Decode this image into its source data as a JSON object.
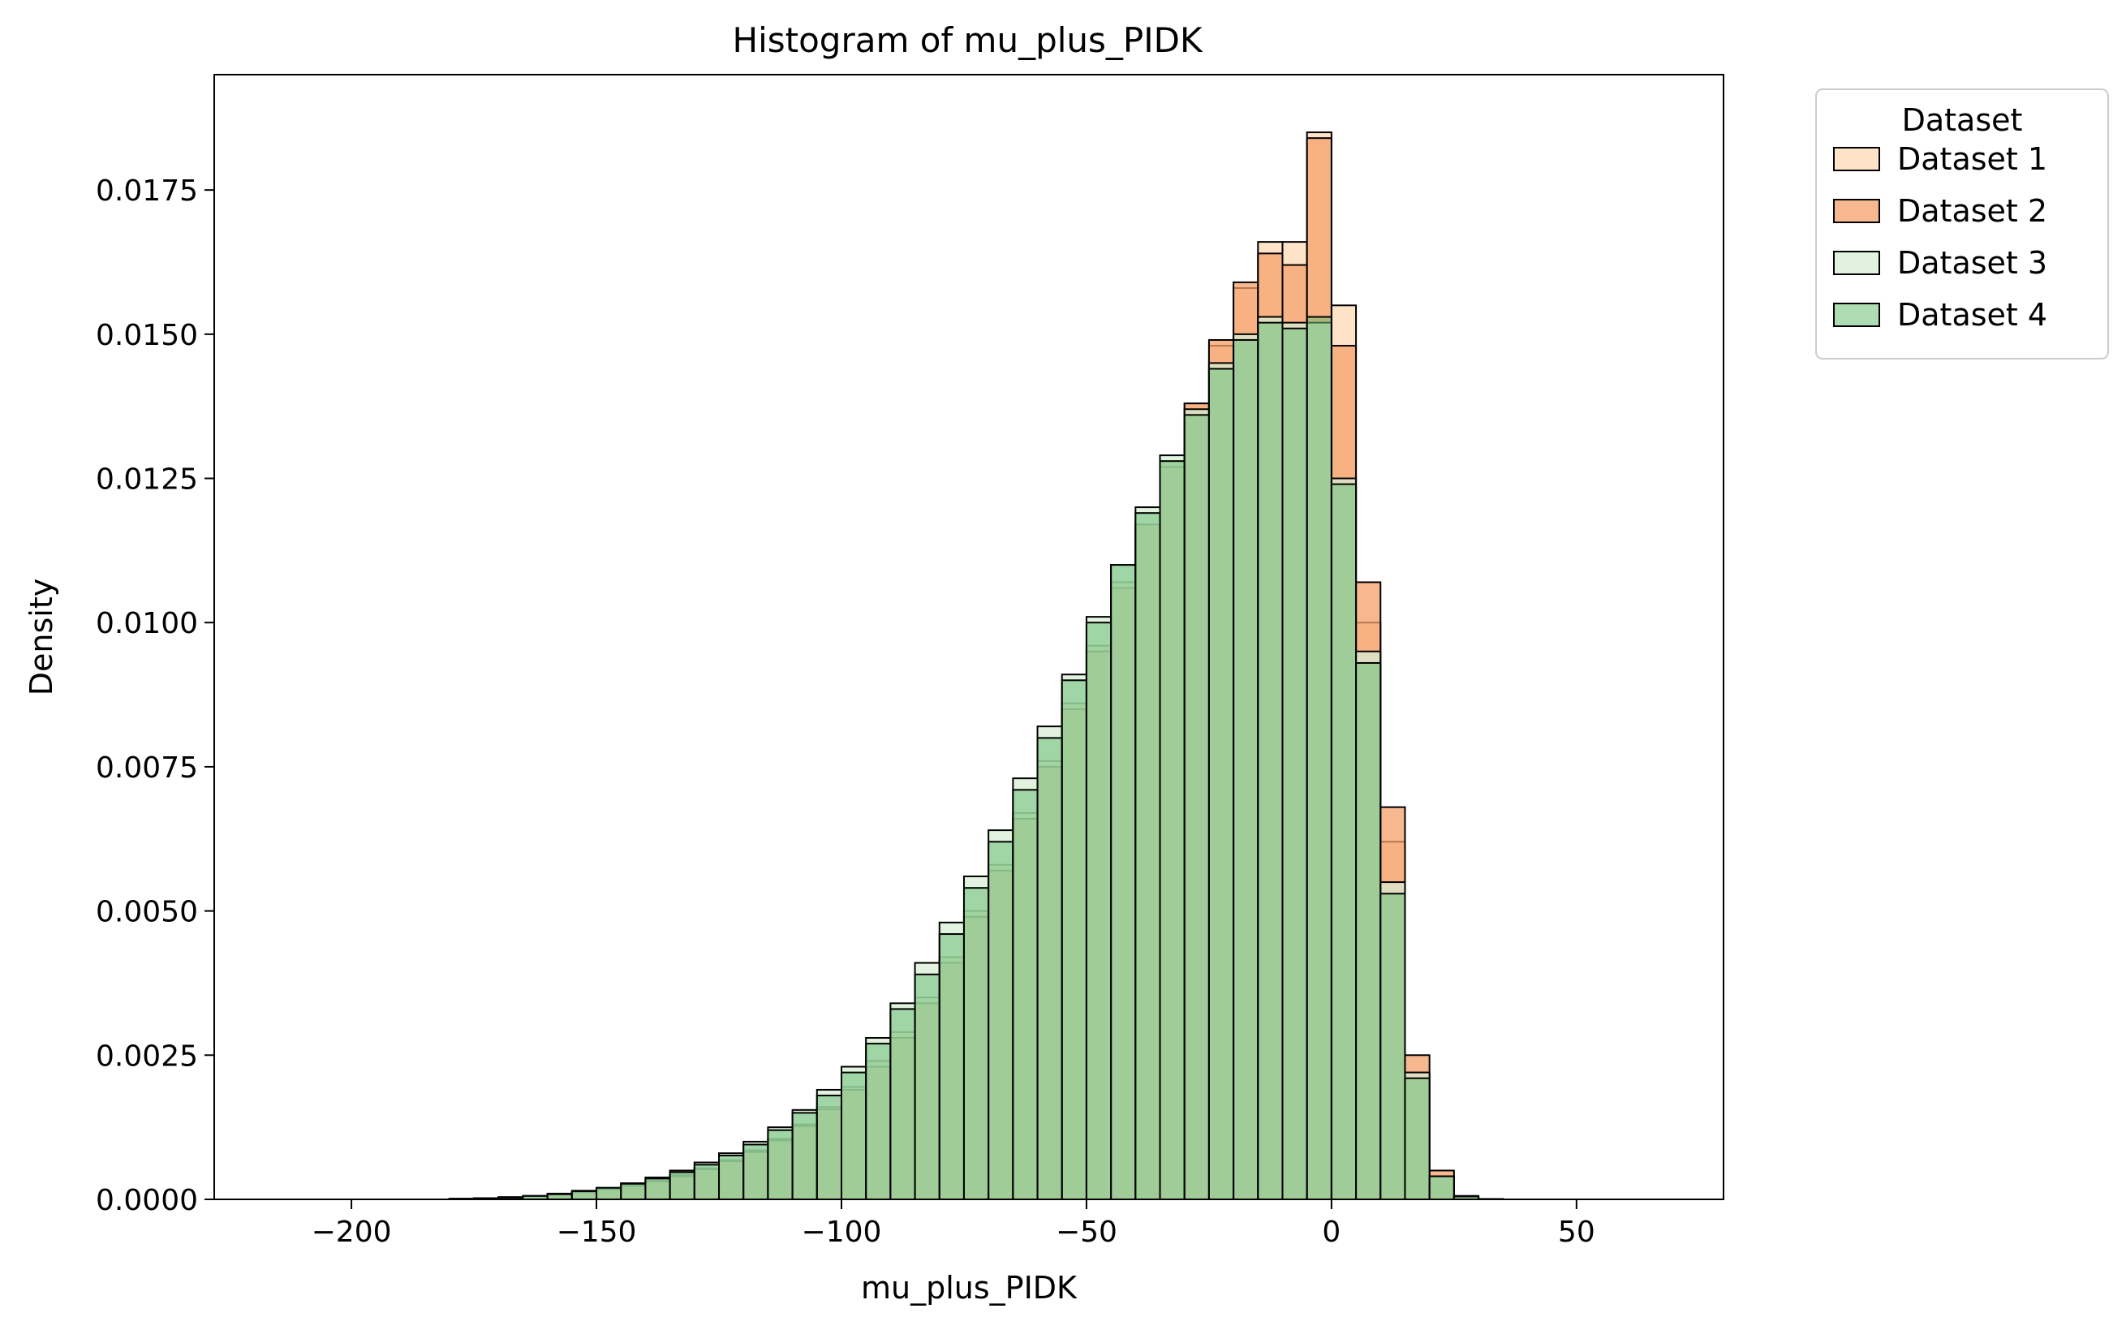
{
  "chart_data": {
    "type": "histogram",
    "title": "Histogram of mu_plus_PIDK",
    "xlabel": "mu_plus_PIDK",
    "ylabel": "Density",
    "xlim": [
      -228,
      80
    ],
    "ylim": [
      0,
      0.0195
    ],
    "xticks": [
      -200,
      -150,
      -100,
      -50,
      0,
      50
    ],
    "xtick_labels": [
      "−200",
      "−150",
      "−100",
      "−50",
      "0",
      "50"
    ],
    "yticks": [
      0,
      0.0025,
      0.005,
      0.0075,
      0.01,
      0.0125,
      0.015,
      0.0175
    ],
    "ytick_labels": [
      "0.0000",
      "0.0025",
      "0.0050",
      "0.0075",
      "0.0100",
      "0.0125",
      "0.0150",
      "0.0175"
    ],
    "legend": {
      "title": "Dataset",
      "placement": "outside-upper-right"
    },
    "series": [
      {
        "name": "Dataset 1",
        "color": "#fdd9b5",
        "opacity": 0.75,
        "bins": [
          [
            -180,
            -175,
            1e-05
          ],
          [
            -175,
            -170,
            2e-05
          ],
          [
            -170,
            -165,
            3e-05
          ],
          [
            -165,
            -160,
            5e-05
          ],
          [
            -160,
            -155,
            8e-05
          ],
          [
            -155,
            -150,
            0.00012
          ],
          [
            -150,
            -145,
            0.00017
          ],
          [
            -145,
            -140,
            0.00024
          ],
          [
            -140,
            -135,
            0.00032
          ],
          [
            -135,
            -130,
            0.00042
          ],
          [
            -130,
            -125,
            0.00054
          ],
          [
            -125,
            -120,
            0.00068
          ],
          [
            -120,
            -115,
            0.00085
          ],
          [
            -115,
            -110,
            0.00105
          ],
          [
            -110,
            -105,
            0.0013
          ],
          [
            -105,
            -100,
            0.0016
          ],
          [
            -100,
            -95,
            0.00195
          ],
          [
            -95,
            -90,
            0.0024
          ],
          [
            -90,
            -85,
            0.0029
          ],
          [
            -85,
            -80,
            0.0035
          ],
          [
            -80,
            -75,
            0.0042
          ],
          [
            -75,
            -70,
            0.005
          ],
          [
            -70,
            -65,
            0.0058
          ],
          [
            -65,
            -60,
            0.0067
          ],
          [
            -60,
            -55,
            0.0076
          ],
          [
            -55,
            -50,
            0.0086
          ],
          [
            -50,
            -45,
            0.0096
          ],
          [
            -45,
            -40,
            0.0107
          ],
          [
            -40,
            -35,
            0.0117
          ],
          [
            -35,
            -30,
            0.0128
          ],
          [
            -30,
            -25,
            0.0138
          ],
          [
            -25,
            -20,
            0.0148
          ],
          [
            -20,
            -15,
            0.0158
          ],
          [
            -15,
            -10,
            0.0166
          ],
          [
            -10,
            -5,
            0.0166
          ],
          [
            -5,
            0,
            0.0185
          ],
          [
            0,
            5,
            0.0155
          ],
          [
            5,
            10,
            0.01
          ],
          [
            10,
            15,
            0.0062
          ],
          [
            15,
            20,
            0.0022
          ],
          [
            20,
            25,
            0.0004
          ],
          [
            25,
            30,
            5e-05
          ],
          [
            30,
            35,
            5e-06
          ]
        ]
      },
      {
        "name": "Dataset 2",
        "color": "#f4a06b",
        "opacity": 0.75,
        "bins": [
          [
            -180,
            -175,
            1e-05
          ],
          [
            -175,
            -170,
            2e-05
          ],
          [
            -170,
            -165,
            3e-05
          ],
          [
            -165,
            -160,
            5e-05
          ],
          [
            -160,
            -155,
            8e-05
          ],
          [
            -155,
            -150,
            0.00012
          ],
          [
            -150,
            -145,
            0.00017
          ],
          [
            -145,
            -140,
            0.00023
          ],
          [
            -140,
            -135,
            0.00031
          ],
          [
            -135,
            -130,
            0.0004
          ],
          [
            -130,
            -125,
            0.00052
          ],
          [
            -125,
            -120,
            0.00066
          ],
          [
            -120,
            -115,
            0.00082
          ],
          [
            -115,
            -110,
            0.00102
          ],
          [
            -110,
            -105,
            0.00127
          ],
          [
            -105,
            -100,
            0.00156
          ],
          [
            -100,
            -95,
            0.0019
          ],
          [
            -95,
            -90,
            0.0023
          ],
          [
            -90,
            -85,
            0.0028
          ],
          [
            -85,
            -80,
            0.0034
          ],
          [
            -80,
            -75,
            0.0041
          ],
          [
            -75,
            -70,
            0.0049
          ],
          [
            -70,
            -65,
            0.0057
          ],
          [
            -65,
            -60,
            0.0066
          ],
          [
            -60,
            -55,
            0.0075
          ],
          [
            -55,
            -50,
            0.0085
          ],
          [
            -50,
            -45,
            0.0095
          ],
          [
            -45,
            -40,
            0.0106
          ],
          [
            -40,
            -35,
            0.0117
          ],
          [
            -35,
            -30,
            0.0127
          ],
          [
            -30,
            -25,
            0.0138
          ],
          [
            -25,
            -20,
            0.0149
          ],
          [
            -20,
            -15,
            0.0159
          ],
          [
            -15,
            -10,
            0.0164
          ],
          [
            -10,
            -5,
            0.0162
          ],
          [
            -5,
            0,
            0.0184
          ],
          [
            0,
            5,
            0.0148
          ],
          [
            5,
            10,
            0.0107
          ],
          [
            10,
            15,
            0.0068
          ],
          [
            15,
            20,
            0.0025
          ],
          [
            20,
            25,
            0.0005
          ],
          [
            25,
            30,
            6e-05
          ],
          [
            30,
            35,
            5e-06
          ]
        ]
      },
      {
        "name": "Dataset 3",
        "color": "#d7eed4",
        "opacity": 0.75,
        "bins": [
          [
            -180,
            -175,
            1e-05
          ],
          [
            -175,
            -170,
            2e-05
          ],
          [
            -170,
            -165,
            4e-05
          ],
          [
            -165,
            -160,
            6e-05
          ],
          [
            -160,
            -155,
            0.0001
          ],
          [
            -155,
            -150,
            0.00015
          ],
          [
            -150,
            -145,
            0.0002
          ],
          [
            -145,
            -140,
            0.00028
          ],
          [
            -140,
            -135,
            0.00038
          ],
          [
            -135,
            -130,
            0.0005
          ],
          [
            -130,
            -125,
            0.00064
          ],
          [
            -125,
            -120,
            0.0008
          ],
          [
            -120,
            -115,
            0.001
          ],
          [
            -115,
            -110,
            0.00125
          ],
          [
            -110,
            -105,
            0.00155
          ],
          [
            -105,
            -100,
            0.0019
          ],
          [
            -100,
            -95,
            0.0023
          ],
          [
            -95,
            -90,
            0.0028
          ],
          [
            -90,
            -85,
            0.0034
          ],
          [
            -85,
            -80,
            0.0041
          ],
          [
            -80,
            -75,
            0.0048
          ],
          [
            -75,
            -70,
            0.0056
          ],
          [
            -70,
            -65,
            0.0064
          ],
          [
            -65,
            -60,
            0.0073
          ],
          [
            -60,
            -55,
            0.0082
          ],
          [
            -55,
            -50,
            0.0091
          ],
          [
            -50,
            -45,
            0.0101
          ],
          [
            -45,
            -40,
            0.011
          ],
          [
            -40,
            -35,
            0.012
          ],
          [
            -35,
            -30,
            0.0129
          ],
          [
            -30,
            -25,
            0.0137
          ],
          [
            -25,
            -20,
            0.0145
          ],
          [
            -20,
            -15,
            0.015
          ],
          [
            -15,
            -10,
            0.0153
          ],
          [
            -10,
            -5,
            0.0152
          ],
          [
            -5,
            0,
            0.0152
          ],
          [
            0,
            5,
            0.0125
          ],
          [
            5,
            10,
            0.0095
          ],
          [
            10,
            15,
            0.0055
          ],
          [
            15,
            20,
            0.0022
          ],
          [
            20,
            25,
            0.0004
          ],
          [
            25,
            30,
            5e-05
          ],
          [
            30,
            35,
            5e-06
          ]
        ]
      },
      {
        "name": "Dataset 4",
        "color": "#6bbf74",
        "opacity": 0.55,
        "bins": [
          [
            -180,
            -175,
            1e-05
          ],
          [
            -175,
            -170,
            2e-05
          ],
          [
            -170,
            -165,
            3e-05
          ],
          [
            -165,
            -160,
            6e-05
          ],
          [
            -160,
            -155,
            9e-05
          ],
          [
            -155,
            -150,
            0.00014
          ],
          [
            -150,
            -145,
            0.0002
          ],
          [
            -145,
            -140,
            0.00027
          ],
          [
            -140,
            -135,
            0.00036
          ],
          [
            -135,
            -130,
            0.00047
          ],
          [
            -130,
            -125,
            0.0006
          ],
          [
            -125,
            -120,
            0.00076
          ],
          [
            -120,
            -115,
            0.00095
          ],
          [
            -115,
            -110,
            0.0012
          ],
          [
            -110,
            -105,
            0.0015
          ],
          [
            -105,
            -100,
            0.0018
          ],
          [
            -100,
            -95,
            0.0022
          ],
          [
            -95,
            -90,
            0.0027
          ],
          [
            -90,
            -85,
            0.0033
          ],
          [
            -85,
            -80,
            0.0039
          ],
          [
            -80,
            -75,
            0.0046
          ],
          [
            -75,
            -70,
            0.0054
          ],
          [
            -70,
            -65,
            0.0062
          ],
          [
            -65,
            -60,
            0.0071
          ],
          [
            -60,
            -55,
            0.008
          ],
          [
            -55,
            -50,
            0.009
          ],
          [
            -50,
            -45,
            0.01
          ],
          [
            -45,
            -40,
            0.011
          ],
          [
            -40,
            -35,
            0.0119
          ],
          [
            -35,
            -30,
            0.0128
          ],
          [
            -30,
            -25,
            0.0136
          ],
          [
            -25,
            -20,
            0.0144
          ],
          [
            -20,
            -15,
            0.0149
          ],
          [
            -15,
            -10,
            0.0152
          ],
          [
            -10,
            -5,
            0.0151
          ],
          [
            -5,
            0,
            0.0153
          ],
          [
            0,
            5,
            0.0124
          ],
          [
            5,
            10,
            0.0093
          ],
          [
            10,
            15,
            0.0053
          ],
          [
            15,
            20,
            0.0021
          ],
          [
            20,
            25,
            0.0004
          ],
          [
            25,
            30,
            5e-05
          ],
          [
            30,
            35,
            5e-06
          ]
        ]
      }
    ]
  }
}
